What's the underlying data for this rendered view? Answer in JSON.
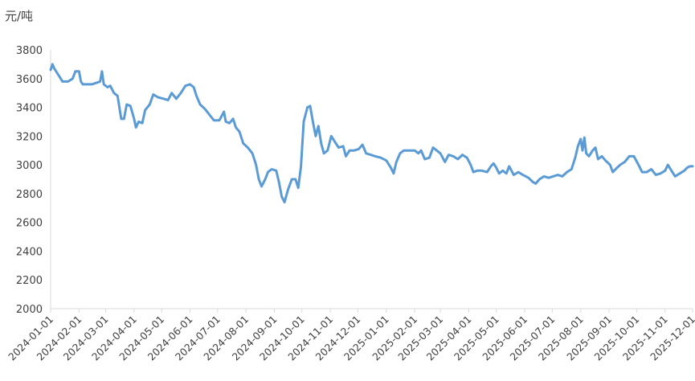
{
  "chart_data": {
    "type": "line",
    "ylabel": "元/吨",
    "ylim": [
      2000,
      3800
    ],
    "yticks": [
      2000,
      2200,
      2400,
      2600,
      2800,
      3000,
      3200,
      3400,
      3600,
      3800
    ],
    "xticks": [
      "2024-01-01",
      "2024-02-01",
      "2024-03-01",
      "2024-04-01",
      "2024-05-01",
      "2024-06-01",
      "2024-07-01",
      "2024-08-01",
      "2024-09-01",
      "2024-10-01",
      "2024-11-01",
      "2024-12-01",
      "2025-01-01",
      "2025-02-01",
      "2025-03-01",
      "2025-04-01",
      "2025-05-01",
      "2025-06-01",
      "2025-07-01",
      "2025-08-01",
      "2025-09-01",
      "2025-10-01",
      "2025-11-01",
      "2025-12-01"
    ],
    "xlim": [
      "2024-01-01",
      "2025-12-01"
    ],
    "grid": false,
    "color": "#5B9BD5",
    "series": [
      {
        "points": [
          [
            "2024-01-01",
            3660
          ],
          [
            "2024-01-03",
            3700
          ],
          [
            "2024-01-05",
            3670
          ],
          [
            "2024-01-10",
            3620
          ],
          [
            "2024-01-14",
            3580
          ],
          [
            "2024-01-20",
            3580
          ],
          [
            "2024-01-25",
            3600
          ],
          [
            "2024-01-28",
            3650
          ],
          [
            "2024-02-01",
            3650
          ],
          [
            "2024-02-03",
            3580
          ],
          [
            "2024-02-05",
            3560
          ],
          [
            "2024-02-15",
            3560
          ],
          [
            "2024-02-24",
            3580
          ],
          [
            "2024-02-26",
            3650
          ],
          [
            "2024-02-28",
            3560
          ],
          [
            "2024-03-03",
            3540
          ],
          [
            "2024-03-06",
            3550
          ],
          [
            "2024-03-10",
            3500
          ],
          [
            "2024-03-14",
            3480
          ],
          [
            "2024-03-18",
            3320
          ],
          [
            "2024-03-21",
            3320
          ],
          [
            "2024-03-24",
            3420
          ],
          [
            "2024-03-28",
            3410
          ],
          [
            "2024-04-01",
            3320
          ],
          [
            "2024-04-03",
            3260
          ],
          [
            "2024-04-06",
            3300
          ],
          [
            "2024-04-10",
            3290
          ],
          [
            "2024-04-13",
            3380
          ],
          [
            "2024-04-18",
            3420
          ],
          [
            "2024-04-22",
            3490
          ],
          [
            "2024-04-27",
            3470
          ],
          [
            "2024-05-03",
            3460
          ],
          [
            "2024-05-08",
            3450
          ],
          [
            "2024-05-12",
            3500
          ],
          [
            "2024-05-17",
            3460
          ],
          [
            "2024-05-22",
            3500
          ],
          [
            "2024-05-27",
            3550
          ],
          [
            "2024-06-01",
            3560
          ],
          [
            "2024-06-05",
            3540
          ],
          [
            "2024-06-08",
            3480
          ],
          [
            "2024-06-12",
            3420
          ],
          [
            "2024-06-17",
            3390
          ],
          [
            "2024-06-22",
            3350
          ],
          [
            "2024-06-27",
            3310
          ],
          [
            "2024-07-03",
            3310
          ],
          [
            "2024-07-08",
            3370
          ],
          [
            "2024-07-10",
            3300
          ],
          [
            "2024-07-14",
            3290
          ],
          [
            "2024-07-18",
            3320
          ],
          [
            "2024-07-21",
            3260
          ],
          [
            "2024-07-25",
            3230
          ],
          [
            "2024-07-29",
            3150
          ],
          [
            "2024-08-03",
            3120
          ],
          [
            "2024-08-08",
            3080
          ],
          [
            "2024-08-12",
            3000
          ],
          [
            "2024-08-15",
            2900
          ],
          [
            "2024-08-18",
            2850
          ],
          [
            "2024-08-22",
            2900
          ],
          [
            "2024-08-25",
            2950
          ],
          [
            "2024-08-29",
            2970
          ],
          [
            "2024-09-03",
            2960
          ],
          [
            "2024-09-06",
            2880
          ],
          [
            "2024-09-09",
            2780
          ],
          [
            "2024-09-12",
            2740
          ],
          [
            "2024-09-16",
            2830
          ],
          [
            "2024-09-20",
            2900
          ],
          [
            "2024-09-24",
            2900
          ],
          [
            "2024-09-27",
            2840
          ],
          [
            "2024-09-30",
            2990
          ],
          [
            "2024-10-03",
            3300
          ],
          [
            "2024-10-07",
            3400
          ],
          [
            "2024-10-10",
            3410
          ],
          [
            "2024-10-13",
            3300
          ],
          [
            "2024-10-16",
            3200
          ],
          [
            "2024-10-19",
            3270
          ],
          [
            "2024-10-22",
            3150
          ],
          [
            "2024-10-25",
            3080
          ],
          [
            "2024-10-29",
            3100
          ],
          [
            "2024-11-02",
            3200
          ],
          [
            "2024-11-06",
            3160
          ],
          [
            "2024-11-10",
            3120
          ],
          [
            "2024-11-15",
            3130
          ],
          [
            "2024-11-18",
            3060
          ],
          [
            "2024-11-22",
            3100
          ],
          [
            "2024-11-27",
            3100
          ],
          [
            "2024-12-02",
            3110
          ],
          [
            "2024-12-06",
            3140
          ],
          [
            "2024-12-10",
            3080
          ],
          [
            "2024-12-15",
            3070
          ],
          [
            "2024-12-20",
            3060
          ],
          [
            "2024-12-26",
            3050
          ],
          [
            "2025-01-01",
            3030
          ],
          [
            "2025-01-06",
            2980
          ],
          [
            "2025-01-09",
            2940
          ],
          [
            "2025-01-12",
            3020
          ],
          [
            "2025-01-16",
            3080
          ],
          [
            "2025-01-20",
            3100
          ],
          [
            "2025-01-26",
            3100
          ],
          [
            "2025-02-01",
            3100
          ],
          [
            "2025-02-05",
            3080
          ],
          [
            "2025-02-08",
            3100
          ],
          [
            "2025-02-12",
            3040
          ],
          [
            "2025-02-17",
            3050
          ],
          [
            "2025-02-21",
            3120
          ],
          [
            "2025-02-25",
            3100
          ],
          [
            "2025-03-01",
            3080
          ],
          [
            "2025-03-06",
            3020
          ],
          [
            "2025-03-10",
            3070
          ],
          [
            "2025-03-15",
            3060
          ],
          [
            "2025-03-20",
            3040
          ],
          [
            "2025-03-25",
            3070
          ],
          [
            "2025-03-30",
            3050
          ],
          [
            "2025-04-03",
            3000
          ],
          [
            "2025-04-06",
            2950
          ],
          [
            "2025-04-10",
            2960
          ],
          [
            "2025-04-15",
            2960
          ],
          [
            "2025-04-21",
            2950
          ],
          [
            "2025-04-25",
            2990
          ],
          [
            "2025-04-28",
            3010
          ],
          [
            "2025-05-01",
            2980
          ],
          [
            "2025-05-04",
            2940
          ],
          [
            "2025-05-08",
            2960
          ],
          [
            "2025-05-12",
            2940
          ],
          [
            "2025-05-15",
            2990
          ],
          [
            "2025-05-20",
            2930
          ],
          [
            "2025-05-25",
            2950
          ],
          [
            "2025-05-30",
            2930
          ],
          [
            "2025-06-05",
            2910
          ],
          [
            "2025-06-10",
            2880
          ],
          [
            "2025-06-13",
            2870
          ],
          [
            "2025-06-17",
            2900
          ],
          [
            "2025-06-22",
            2920
          ],
          [
            "2025-06-27",
            2910
          ],
          [
            "2025-07-02",
            2920
          ],
          [
            "2025-07-07",
            2930
          ],
          [
            "2025-07-12",
            2920
          ],
          [
            "2025-07-17",
            2950
          ],
          [
            "2025-07-22",
            2970
          ],
          [
            "2025-07-26",
            3050
          ],
          [
            "2025-07-29",
            3130
          ],
          [
            "2025-08-01",
            3180
          ],
          [
            "2025-08-03",
            3100
          ],
          [
            "2025-08-05",
            3190
          ],
          [
            "2025-08-07",
            3080
          ],
          [
            "2025-08-10",
            3060
          ],
          [
            "2025-08-14",
            3100
          ],
          [
            "2025-08-17",
            3120
          ],
          [
            "2025-08-20",
            3040
          ],
          [
            "2025-08-24",
            3060
          ],
          [
            "2025-08-28",
            3030
          ],
          [
            "2025-09-02",
            3000
          ],
          [
            "2025-09-05",
            2950
          ],
          [
            "2025-09-08",
            2970
          ],
          [
            "2025-09-13",
            3000
          ],
          [
            "2025-09-18",
            3020
          ],
          [
            "2025-09-23",
            3060
          ],
          [
            "2025-09-28",
            3060
          ],
          [
            "2025-10-03",
            3000
          ],
          [
            "2025-10-07",
            2950
          ],
          [
            "2025-10-12",
            2950
          ],
          [
            "2025-10-17",
            2970
          ],
          [
            "2025-10-22",
            2930
          ],
          [
            "2025-10-27",
            2940
          ],
          [
            "2025-11-01",
            2960
          ],
          [
            "2025-11-04",
            3000
          ],
          [
            "2025-11-08",
            2960
          ],
          [
            "2025-11-12",
            2920
          ],
          [
            "2025-11-17",
            2940
          ],
          [
            "2025-11-22",
            2960
          ],
          [
            "2025-11-25",
            2980
          ],
          [
            "2025-11-28",
            2990
          ],
          [
            "2025-12-01",
            2990
          ]
        ]
      }
    ]
  }
}
